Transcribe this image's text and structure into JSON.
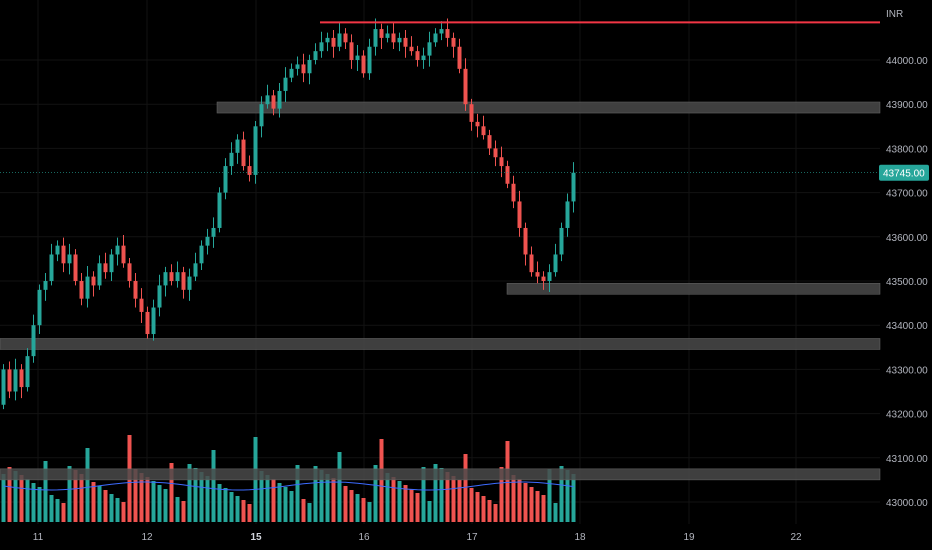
{
  "chart_data": {
    "type": "candlestick",
    "currency_label": "INR",
    "last_price_label": "43745.00",
    "y_axis": {
      "range": [
        42950,
        44100
      ],
      "ticks": [
        {
          "value": 44000,
          "label": "44000.00"
        },
        {
          "value": 43900,
          "label": "43900.00"
        },
        {
          "value": 43800,
          "label": "43800.00"
        },
        {
          "value": 43700,
          "label": "43700.00"
        },
        {
          "value": 43600,
          "label": "43600.00"
        },
        {
          "value": 43500,
          "label": "43500.00"
        },
        {
          "value": 43400,
          "label": "43400.00"
        },
        {
          "value": 43300,
          "label": "43300.00"
        },
        {
          "value": 43200,
          "label": "43200.00"
        },
        {
          "value": 43100,
          "label": "43100.00"
        },
        {
          "value": 43000,
          "label": "43000.00"
        }
      ]
    },
    "x_axis": {
      "ticks": [
        {
          "label": "11",
          "bold": false
        },
        {
          "label": "12",
          "bold": false
        },
        {
          "label": "15",
          "bold": true
        },
        {
          "label": "16",
          "bold": false
        },
        {
          "label": "17",
          "bold": false
        },
        {
          "label": "18",
          "bold": false
        },
        {
          "label": "19",
          "bold": false
        },
        {
          "label": "22",
          "bold": false
        }
      ]
    },
    "zones": [
      {
        "low": 43880,
        "high": 43905
      },
      {
        "low": 43470,
        "high": 43495
      },
      {
        "low": 43345,
        "high": 43370
      },
      {
        "low": 43050,
        "high": 43075
      }
    ],
    "resistance_line": 44085,
    "last_price": 43745,
    "colors": {
      "up": "#26a69a",
      "down": "#ef5350",
      "zone": "#4a4a4a",
      "line": "#f23645",
      "ma": "#3d6bff",
      "axis_text": "#b2b5be"
    }
  }
}
